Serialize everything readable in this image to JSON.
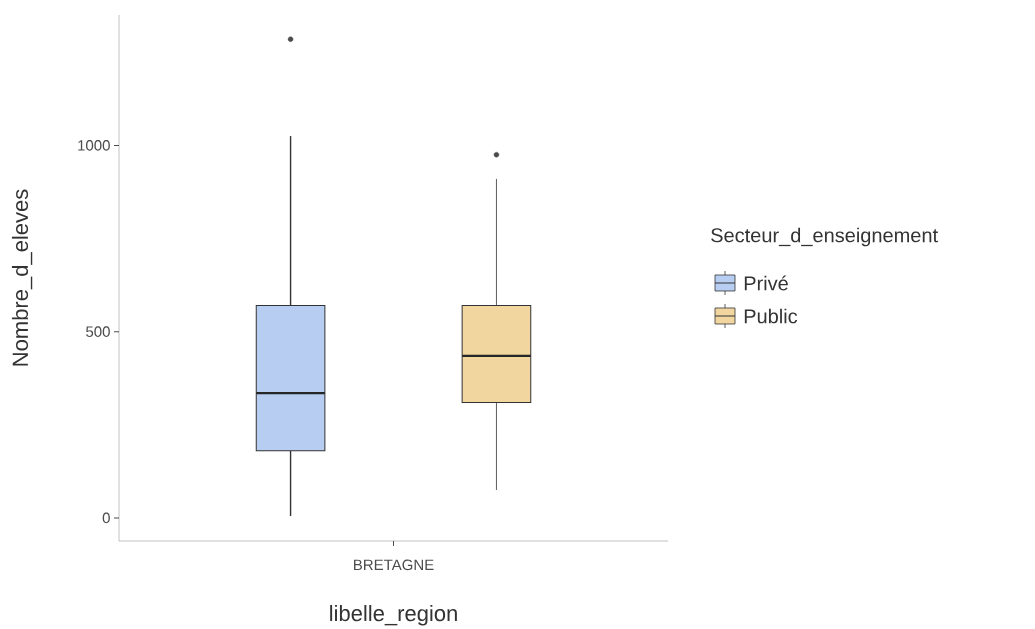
{
  "chart_data": {
    "type": "box",
    "xlabel": "libelle_region",
    "ylabel": "Nombre_d_eleves",
    "legend_title": "Secteur_d_enseignement",
    "categories": [
      "BRETAGNE"
    ],
    "series": [
      {
        "name": "Privé",
        "color": "#b7cef2",
        "boxes": [
          {
            "low": 5,
            "q1": 180,
            "median": 335,
            "q3": 570,
            "high": 1025,
            "outliers": [
              1285
            ]
          }
        ]
      },
      {
        "name": "Public",
        "color": "#f1d6a0",
        "boxes": [
          {
            "low": 75,
            "q1": 310,
            "median": 435,
            "q3": 570,
            "high": 910,
            "outliers": [
              975
            ]
          }
        ]
      }
    ],
    "ylim": [
      -62,
      1350
    ],
    "yticks": [
      0,
      500,
      1000
    ],
    "grid": false,
    "legend": "right"
  }
}
